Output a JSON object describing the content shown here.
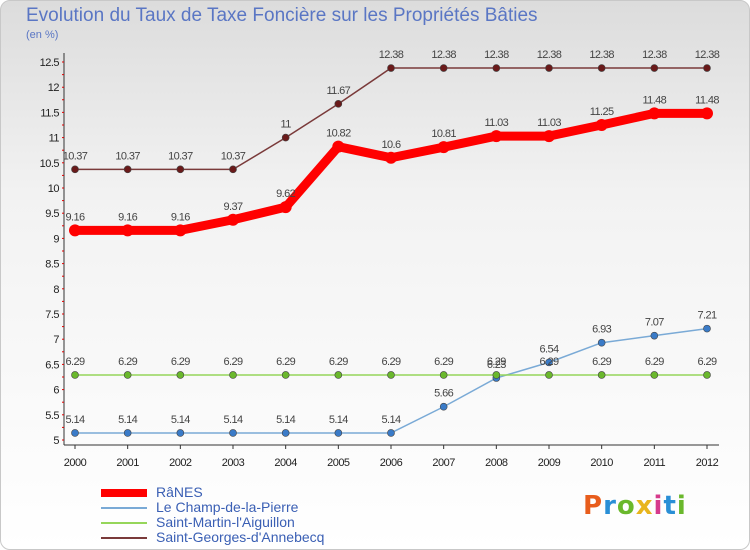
{
  "header": {
    "title": "Evolution du Taux de Taxe Foncière sur les Propriétés Bâties",
    "unit": "(en %)"
  },
  "logo": {
    "text": "Proxiti",
    "colors": [
      "#e85d1c",
      "#2a8fd6",
      "#6ab82c",
      "#e8b51c",
      "#d63a8c",
      "#2a8fd6",
      "#6ab82c"
    ]
  },
  "chart_data": {
    "type": "line",
    "x": [
      "2000",
      "2001",
      "2002",
      "2003",
      "2004",
      "2005",
      "2006",
      "2007",
      "2008",
      "2009",
      "2010",
      "2011",
      "2012"
    ],
    "ylim": [
      5,
      12.5
    ],
    "yticks": [
      "5",
      "5.5",
      "6",
      "6.5",
      "7",
      "7.5",
      "8",
      "8.5",
      "9",
      "9.5",
      "10",
      "10.5",
      "11",
      "11.5",
      "12",
      "12.5"
    ],
    "grid": false,
    "legend": "bottom",
    "series": [
      {
        "name": "RâNES",
        "color": "#ff0000",
        "marker": "#ff0000",
        "width": 9,
        "values": [
          9.16,
          9.16,
          9.16,
          9.37,
          9.62,
          10.82,
          10.6,
          10.81,
          11.03,
          11.03,
          11.25,
          11.48,
          11.48
        ],
        "labels": [
          "9.16",
          "9.16",
          "9.16",
          "9.37",
          "9.62",
          "10.82",
          "10.6",
          "10.81",
          "11.03",
          "11.03",
          "11.25",
          "11.48",
          "11.48"
        ]
      },
      {
        "name": "Le Champ-de-la-Pierre",
        "color": "#7aaad6",
        "marker": "#3a7bc8",
        "width": 1.5,
        "values": [
          5.14,
          5.14,
          5.14,
          5.14,
          5.14,
          5.14,
          5.14,
          5.66,
          6.23,
          6.54,
          6.93,
          7.07,
          7.21
        ],
        "labels": [
          "5.14",
          "5.14",
          "5.14",
          "5.14",
          "5.14",
          "5.14",
          "5.14",
          "5.66",
          "6.23",
          "6.54",
          "6.93",
          "7.07",
          "7.21"
        ]
      },
      {
        "name": "Saint-Martin-l'Aiguillon",
        "color": "#96d65a",
        "marker": "#6ab82c",
        "width": 1.5,
        "values": [
          6.29,
          6.29,
          6.29,
          6.29,
          6.29,
          6.29,
          6.29,
          6.29,
          6.29,
          6.29,
          6.29,
          6.29,
          6.29
        ],
        "labels": [
          "6.29",
          "6.29",
          "6.29",
          "6.29",
          "6.29",
          "6.29",
          "6.29",
          "6.29",
          "6.29",
          "6.29",
          "6.29",
          "6.29",
          "6.29"
        ]
      },
      {
        "name": "Saint-Georges-d'Annebecq",
        "color": "#7a3a3a",
        "marker": "#6a1a1a",
        "width": 1.5,
        "values": [
          10.37,
          10.37,
          10.37,
          10.37,
          11,
          11.67,
          12.38,
          12.38,
          12.38,
          12.38,
          12.38,
          12.38,
          12.38
        ],
        "labels": [
          "10.37",
          "10.37",
          "10.37",
          "10.37",
          "11",
          "11.67",
          "12.38",
          "12.38",
          "12.38",
          "12.38",
          "12.38",
          "12.38",
          "12.38"
        ]
      }
    ]
  }
}
